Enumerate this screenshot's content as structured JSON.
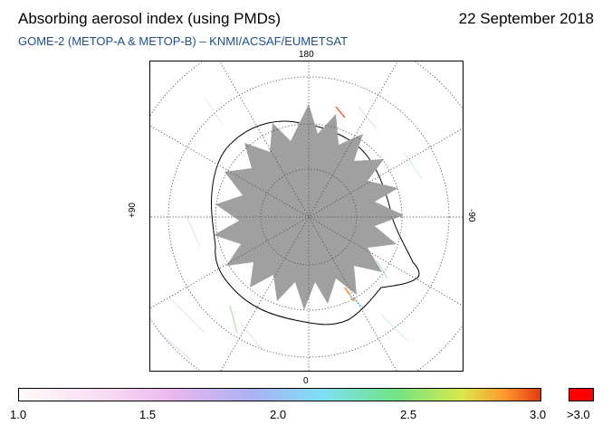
{
  "header": {
    "title": "Absorbing aerosol index (using PMDs)",
    "date": "22 September 2018",
    "subtitle": "GOME-2 (METOP-A & METOP-B)  –  KNMI/ACSAF/EUMETSAT"
  },
  "map": {
    "labels": {
      "top": "180",
      "bottom": "0",
      "left": "+90",
      "right": "-90"
    },
    "colors": {
      "no_data": "#a0a0a0",
      "coast": "#000000",
      "grid": "#555555"
    }
  },
  "colorbar": {
    "ticks": [
      "1.0",
      "1.5",
      "2.0",
      "2.5",
      "3.0"
    ],
    "over_label": ">3.0",
    "over_color": "#ff0000"
  }
}
